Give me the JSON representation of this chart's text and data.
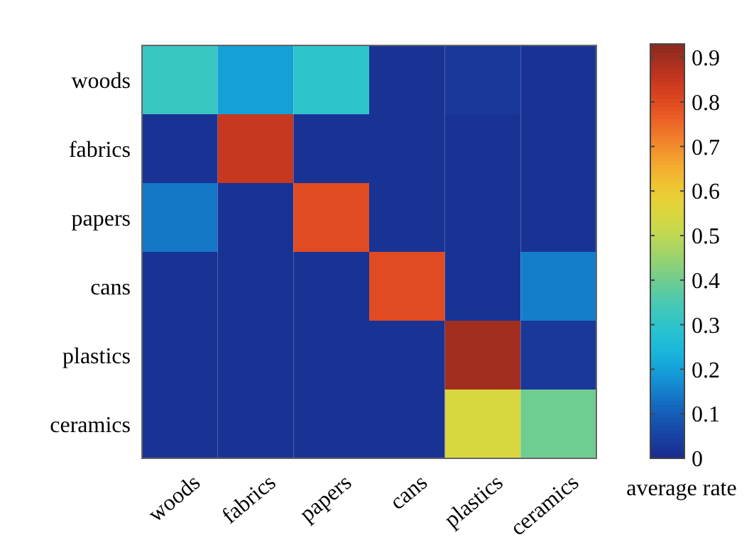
{
  "chart_data": {
    "type": "heatmap",
    "clabel": "average rate",
    "categories": [
      "woods",
      "fabrics",
      "papers",
      "cans",
      "plastics",
      "ceramics"
    ],
    "y_categories": [
      "woods",
      "fabrics",
      "papers",
      "cans",
      "plastics",
      "ceramics"
    ],
    "cells": [
      [
        0.32,
        0.2,
        0.3,
        0.02,
        0.03,
        0.02
      ],
      [
        0.02,
        0.85,
        0.02,
        0.02,
        0.02,
        0.02
      ],
      [
        0.14,
        0.02,
        0.8,
        0.02,
        0.02,
        0.02
      ],
      [
        0.02,
        0.02,
        0.02,
        0.8,
        0.02,
        0.15
      ],
      [
        0.02,
        0.02,
        0.02,
        0.02,
        0.9,
        0.03
      ],
      [
        0.02,
        0.02,
        0.02,
        0.02,
        0.55,
        0.4
      ]
    ],
    "clim": [
      0,
      0.93
    ],
    "cticks": [
      0,
      0.1,
      0.2,
      0.3,
      0.4,
      0.5,
      0.6,
      0.7,
      0.8,
      0.9
    ]
  }
}
